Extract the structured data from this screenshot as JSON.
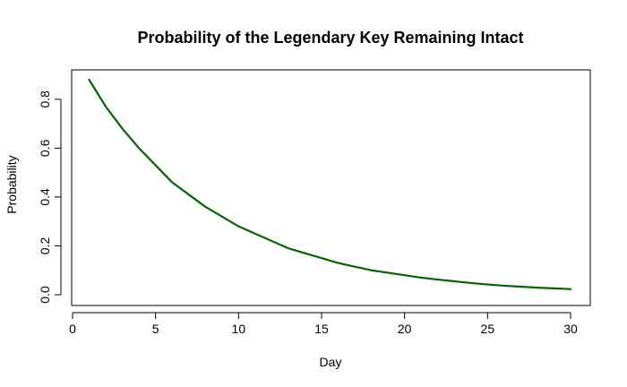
{
  "chart_data": {
    "type": "line",
    "title": "Probability of the Legendary Key Remaining Intact",
    "xlabel": "Day",
    "ylabel": "Probability",
    "xlim": [
      0,
      30
    ],
    "ylim": [
      0,
      0.88
    ],
    "x_ticks": [
      0,
      5,
      10,
      15,
      20,
      25,
      30
    ],
    "y_ticks": [
      0.0,
      0.2,
      0.4,
      0.6,
      0.8
    ],
    "x_tick_labels": [
      "0",
      "5",
      "10",
      "15",
      "20",
      "25",
      "30"
    ],
    "y_tick_labels": [
      "0.0",
      "0.2",
      "0.4",
      "0.6",
      "0.8"
    ],
    "grid": false,
    "legend": false,
    "series": [
      {
        "color": "#006400",
        "x": [
          1,
          2,
          3,
          4,
          5,
          6,
          7,
          8,
          9,
          10,
          11,
          12,
          13,
          14,
          15,
          16,
          17,
          18,
          19,
          20,
          21,
          22,
          23,
          24,
          25,
          26,
          27,
          28,
          29,
          30
        ],
        "y": [
          0.88,
          0.77,
          0.68,
          0.6,
          0.53,
          0.46,
          0.41,
          0.36,
          0.32,
          0.28,
          0.25,
          0.22,
          0.19,
          0.17,
          0.15,
          0.13,
          0.115,
          0.1,
          0.09,
          0.08,
          0.07,
          0.062,
          0.055,
          0.048,
          0.042,
          0.037,
          0.033,
          0.029,
          0.026,
          0.023
        ]
      }
    ]
  }
}
